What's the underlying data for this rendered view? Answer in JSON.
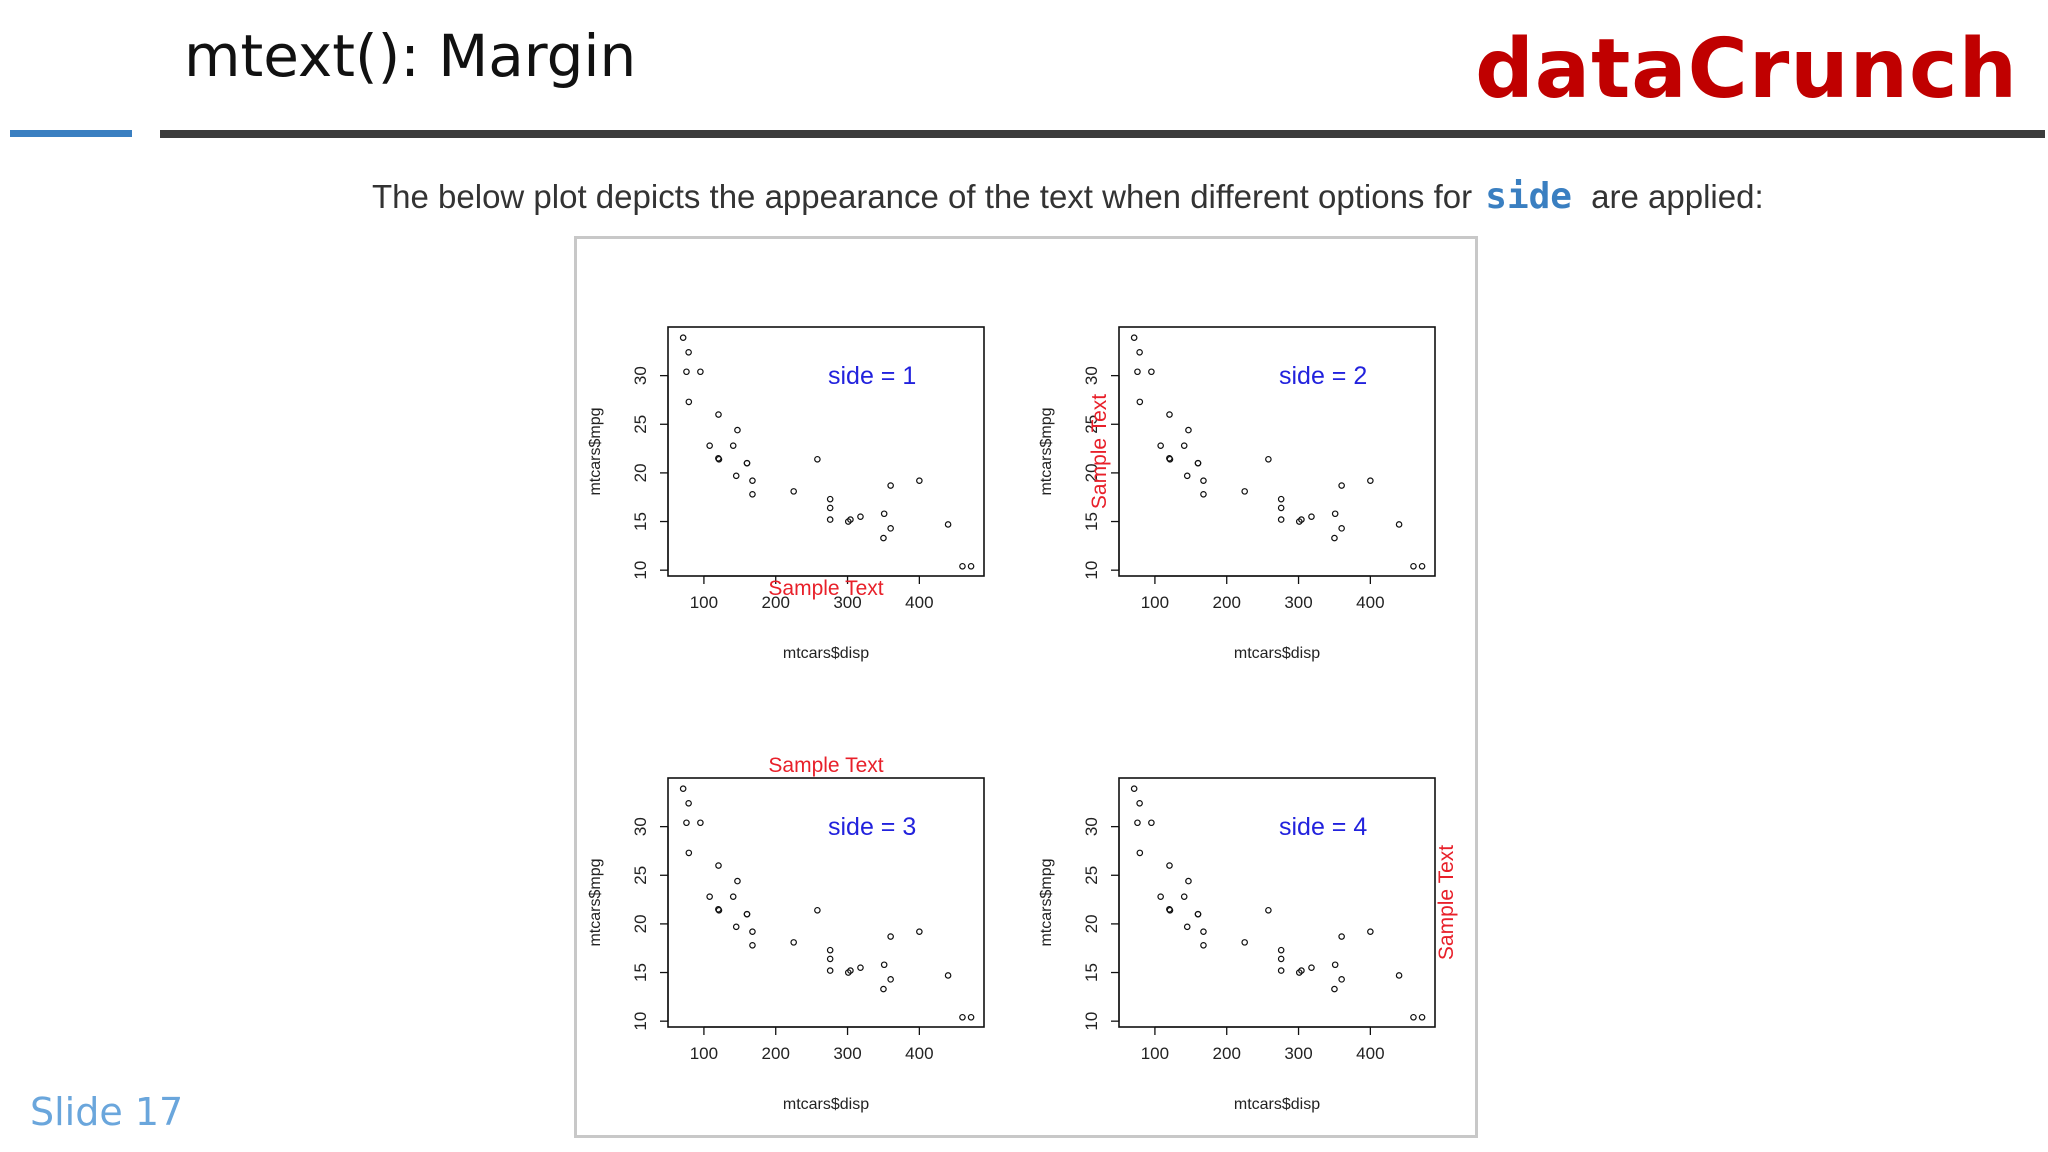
{
  "header": {
    "title": "mtext(): Margin",
    "brand": "dataCrunch"
  },
  "intro": {
    "before": "The below plot depicts the appearance of the text when different options for",
    "code": "side",
    "after": "are applied:"
  },
  "footer": {
    "slide_label": "Slide 17"
  },
  "colors": {
    "brand": "#c00000",
    "accent": "#3a7fc1",
    "side_text": "#2222dd",
    "sample_text": "#e8202a"
  },
  "chart_data": [
    {
      "type": "scatter",
      "xlabel": "mtcars$disp",
      "ylabel": "mtcars$mpg",
      "xlim": [
        50,
        490
      ],
      "ylim": [
        9.4,
        35
      ],
      "xticks": [
        100,
        200,
        300,
        400
      ],
      "yticks": [
        10,
        15,
        20,
        25,
        30
      ],
      "annotation": "side =  1",
      "margin_text": "Sample Text",
      "margin_side": 1,
      "points": [
        [
          160,
          21
        ],
        [
          160,
          21
        ],
        [
          108,
          22.8
        ],
        [
          258,
          21.4
        ],
        [
          360,
          18.7
        ],
        [
          225,
          18.1
        ],
        [
          360,
          14.3
        ],
        [
          146.7,
          24.4
        ],
        [
          140.8,
          22.8
        ],
        [
          167.6,
          19.2
        ],
        [
          167.6,
          17.8
        ],
        [
          275.8,
          16.4
        ],
        [
          275.8,
          17.3
        ],
        [
          275.8,
          15.2
        ],
        [
          472,
          10.4
        ],
        [
          460,
          10.4
        ],
        [
          440,
          14.7
        ],
        [
          78.7,
          32.4
        ],
        [
          75.7,
          30.4
        ],
        [
          71.1,
          33.9
        ],
        [
          120.1,
          21.5
        ],
        [
          318,
          15.5
        ],
        [
          304,
          15.2
        ],
        [
          350,
          13.3
        ],
        [
          400,
          19.2
        ],
        [
          79,
          27.3
        ],
        [
          120.3,
          26
        ],
        [
          95.1,
          30.4
        ],
        [
          351,
          15.8
        ],
        [
          145,
          19.7
        ],
        [
          301,
          15
        ],
        [
          121,
          21.4
        ]
      ]
    },
    {
      "type": "scatter",
      "xlabel": "mtcars$disp",
      "ylabel": "mtcars$mpg",
      "xlim": [
        50,
        490
      ],
      "ylim": [
        9.4,
        35
      ],
      "xticks": [
        100,
        200,
        300,
        400
      ],
      "yticks": [
        10,
        15,
        20,
        25,
        30
      ],
      "annotation": "side =  2",
      "margin_text": "Sample Text",
      "margin_side": 2,
      "points": [
        [
          160,
          21
        ],
        [
          160,
          21
        ],
        [
          108,
          22.8
        ],
        [
          258,
          21.4
        ],
        [
          360,
          18.7
        ],
        [
          225,
          18.1
        ],
        [
          360,
          14.3
        ],
        [
          146.7,
          24.4
        ],
        [
          140.8,
          22.8
        ],
        [
          167.6,
          19.2
        ],
        [
          167.6,
          17.8
        ],
        [
          275.8,
          16.4
        ],
        [
          275.8,
          17.3
        ],
        [
          275.8,
          15.2
        ],
        [
          472,
          10.4
        ],
        [
          460,
          10.4
        ],
        [
          440,
          14.7
        ],
        [
          78.7,
          32.4
        ],
        [
          75.7,
          30.4
        ],
        [
          71.1,
          33.9
        ],
        [
          120.1,
          21.5
        ],
        [
          318,
          15.5
        ],
        [
          304,
          15.2
        ],
        [
          350,
          13.3
        ],
        [
          400,
          19.2
        ],
        [
          79,
          27.3
        ],
        [
          120.3,
          26
        ],
        [
          95.1,
          30.4
        ],
        [
          351,
          15.8
        ],
        [
          145,
          19.7
        ],
        [
          301,
          15
        ],
        [
          121,
          21.4
        ]
      ]
    },
    {
      "type": "scatter",
      "xlabel": "mtcars$disp",
      "ylabel": "mtcars$mpg",
      "xlim": [
        50,
        490
      ],
      "ylim": [
        9.4,
        35
      ],
      "xticks": [
        100,
        200,
        300,
        400
      ],
      "yticks": [
        10,
        15,
        20,
        25,
        30
      ],
      "annotation": "side =  3",
      "margin_text": "Sample Text",
      "margin_side": 3,
      "points": [
        [
          160,
          21
        ],
        [
          160,
          21
        ],
        [
          108,
          22.8
        ],
        [
          258,
          21.4
        ],
        [
          360,
          18.7
        ],
        [
          225,
          18.1
        ],
        [
          360,
          14.3
        ],
        [
          146.7,
          24.4
        ],
        [
          140.8,
          22.8
        ],
        [
          167.6,
          19.2
        ],
        [
          167.6,
          17.8
        ],
        [
          275.8,
          16.4
        ],
        [
          275.8,
          17.3
        ],
        [
          275.8,
          15.2
        ],
        [
          472,
          10.4
        ],
        [
          460,
          10.4
        ],
        [
          440,
          14.7
        ],
        [
          78.7,
          32.4
        ],
        [
          75.7,
          30.4
        ],
        [
          71.1,
          33.9
        ],
        [
          120.1,
          21.5
        ],
        [
          318,
          15.5
        ],
        [
          304,
          15.2
        ],
        [
          350,
          13.3
        ],
        [
          400,
          19.2
        ],
        [
          79,
          27.3
        ],
        [
          120.3,
          26
        ],
        [
          95.1,
          30.4
        ],
        [
          351,
          15.8
        ],
        [
          145,
          19.7
        ],
        [
          301,
          15
        ],
        [
          121,
          21.4
        ]
      ]
    },
    {
      "type": "scatter",
      "xlabel": "mtcars$disp",
      "ylabel": "mtcars$mpg",
      "xlim": [
        50,
        490
      ],
      "ylim": [
        9.4,
        35
      ],
      "xticks": [
        100,
        200,
        300,
        400
      ],
      "yticks": [
        10,
        15,
        20,
        25,
        30
      ],
      "annotation": "side =  4",
      "margin_text": "Sample Text",
      "margin_side": 4,
      "points": [
        [
          160,
          21
        ],
        [
          160,
          21
        ],
        [
          108,
          22.8
        ],
        [
          258,
          21.4
        ],
        [
          360,
          18.7
        ],
        [
          225,
          18.1
        ],
        [
          360,
          14.3
        ],
        [
          146.7,
          24.4
        ],
        [
          140.8,
          22.8
        ],
        [
          167.6,
          19.2
        ],
        [
          167.6,
          17.8
        ],
        [
          275.8,
          16.4
        ],
        [
          275.8,
          17.3
        ],
        [
          275.8,
          15.2
        ],
        [
          472,
          10.4
        ],
        [
          460,
          10.4
        ],
        [
          440,
          14.7
        ],
        [
          78.7,
          32.4
        ],
        [
          75.7,
          30.4
        ],
        [
          71.1,
          33.9
        ],
        [
          120.1,
          21.5
        ],
        [
          318,
          15.5
        ],
        [
          304,
          15.2
        ],
        [
          350,
          13.3
        ],
        [
          400,
          19.2
        ],
        [
          79,
          27.3
        ],
        [
          120.3,
          26
        ],
        [
          95.1,
          30.4
        ],
        [
          351,
          15.8
        ],
        [
          145,
          19.7
        ],
        [
          301,
          15
        ],
        [
          121,
          21.4
        ]
      ]
    }
  ]
}
